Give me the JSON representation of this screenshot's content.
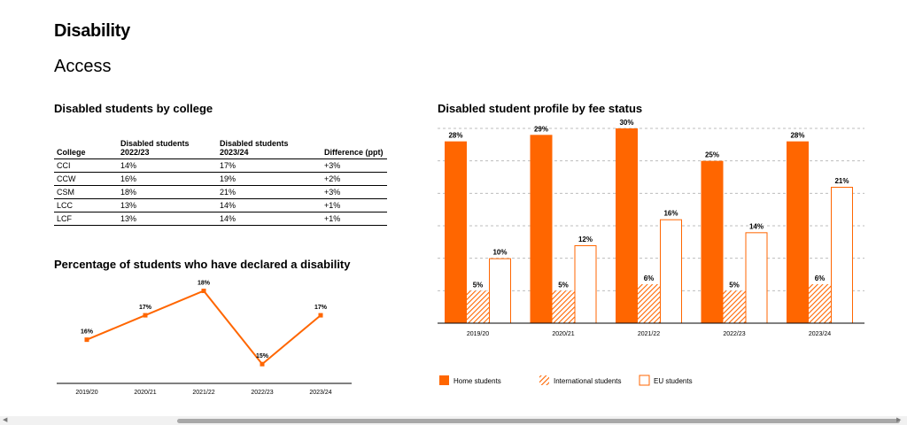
{
  "page": {
    "title": "Disability",
    "subtitle": "Access"
  },
  "colors": {
    "accent": "#ff6600",
    "hatch": "#ff6600",
    "axis": "#000000",
    "grid": "#bdbdbd"
  },
  "table": {
    "title": "Disabled students by college",
    "headers": [
      "College",
      "Disabled students\n2022/23",
      "Disabled students\n2023/24",
      "Difference (ppt)"
    ],
    "rows": [
      [
        "CCI",
        "14%",
        "17%",
        "+3%"
      ],
      [
        "CCW",
        "16%",
        "19%",
        "+2%"
      ],
      [
        "CSM",
        "18%",
        "21%",
        "+3%"
      ],
      [
        "LCC",
        "13%",
        "14%",
        "+1%"
      ],
      [
        "LCF",
        "13%",
        "14%",
        "+1%"
      ]
    ]
  },
  "chart_data": [
    {
      "type": "line",
      "title": "Percentage of students who have declared a disability",
      "categories": [
        "2019/20",
        "2020/21",
        "2021/22",
        "2022/23",
        "2023/24"
      ],
      "values": [
        16,
        17,
        18,
        15,
        17
      ],
      "data_labels": [
        "16%",
        "17%",
        "18%",
        "15%",
        "17%"
      ],
      "ylim": [
        14.5,
        18.2
      ],
      "grid": false
    },
    {
      "type": "bar",
      "title": "Disabled student profile by fee status",
      "categories": [
        "2019/20",
        "2020/21",
        "2021/22",
        "2022/23",
        "2023/24"
      ],
      "series": [
        {
          "name": "Home students",
          "style": "solid",
          "values": [
            28,
            29,
            30,
            25,
            28
          ],
          "labels": [
            "28%",
            "29%",
            "30%",
            "25%",
            "28%"
          ]
        },
        {
          "name": "International students",
          "style": "hatched",
          "values": [
            5,
            5,
            6,
            5,
            6
          ],
          "labels": [
            "5%",
            "5%",
            "6%",
            "5%",
            "6%"
          ]
        },
        {
          "name": "EU students",
          "style": "outline",
          "values": [
            10,
            12,
            16,
            14,
            21
          ],
          "labels": [
            "10%",
            "12%",
            "16%",
            "14%",
            "21%"
          ]
        }
      ],
      "ylim": [
        0,
        30
      ],
      "grid": true,
      "legend_position": "bottom"
    }
  ]
}
